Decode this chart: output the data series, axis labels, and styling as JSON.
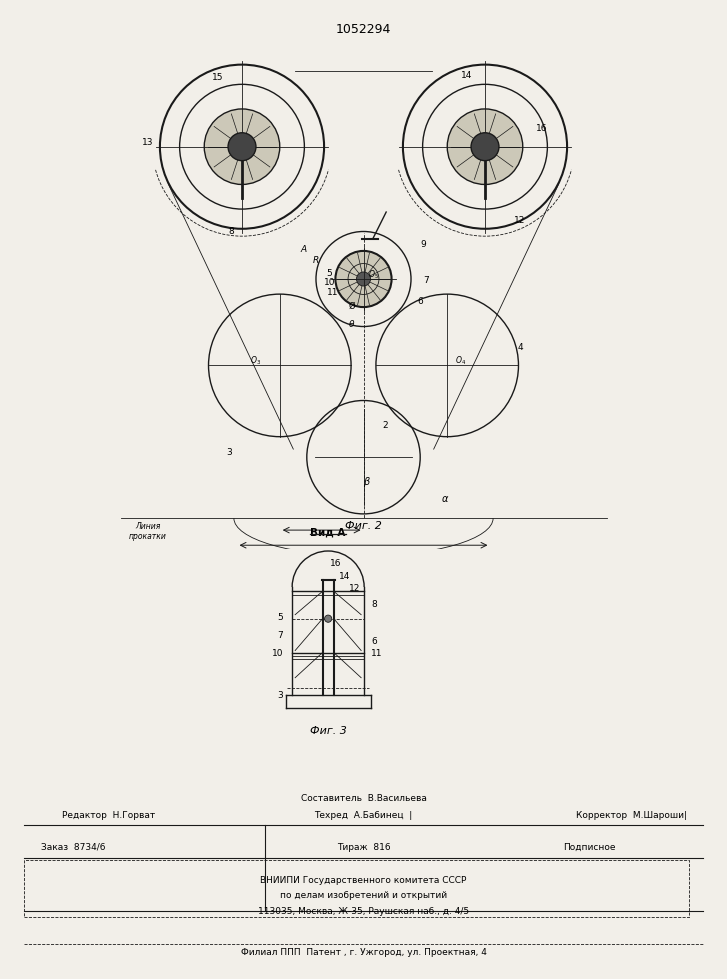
{
  "patent_number": "1052294",
  "bg_color": "#f2efe9",
  "line_color": "#1a1a1a",
  "fig2_caption": "Фиг. 2",
  "fig3_caption": "Фиг. 3",
  "fig3_title": "Вид A",
  "liniya_prokatki": "Линия\nпрокатки",
  "footer_sostavitel": "Составитель  В.Васильева",
  "footer_tekhred": "Техред  А.Бабинец",
  "footer_korrektor": "Корректор  М.Шароши|",
  "footer_editor": "Редактор  Н.Горват",
  "footer_zakaz": "Заказ  8734/6",
  "footer_tirazh": "Тираж  816",
  "footer_podpisnoe": "Подписное",
  "footer_vnipi": "ВНИИПИ Государственного комитета СССР",
  "footer_po_delam": "по делам изобретений и открытий",
  "footer_address": "113035, Москва, Ж-35, Раушская наб., д. 4/5",
  "footer_filial": "Филиал ППП  Патент , г. Ужгород, ул. Проектная, 4"
}
